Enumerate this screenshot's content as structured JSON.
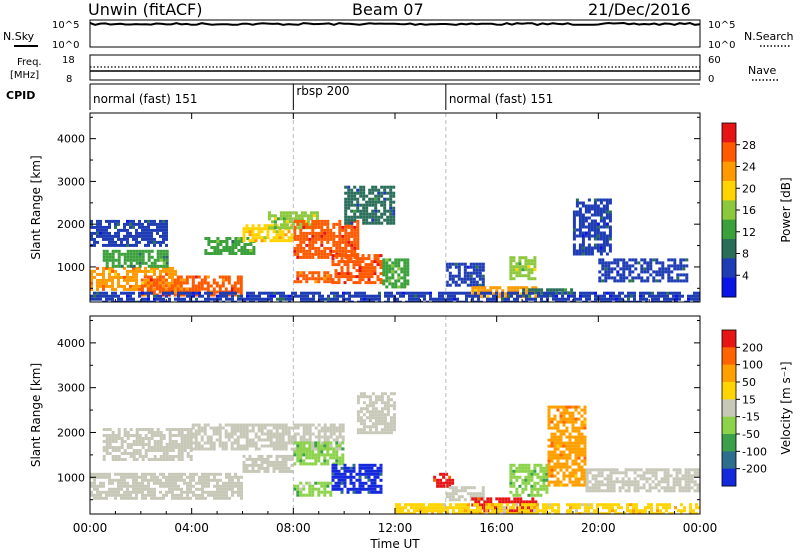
{
  "header": {
    "station": "Unwin (fitACF)",
    "beam": "Beam 07",
    "date": "21/Dec/2016"
  },
  "panel_labels": {
    "nsky": "N.Sky",
    "nsky_top": "10^5",
    "nsky_bottom": "10^0",
    "nsearch": "N.Search",
    "nsearch_top": "10^5",
    "nsearch_bottom": "10^0",
    "freq_line1": "Freq.",
    "freq_line2": "[MHz]",
    "freq_top": "18",
    "freq_bottom": "8",
    "nave": "Nave",
    "nave_top": "60",
    "nave_bottom": "0",
    "cpid": "CPID"
  },
  "cpid_segments": [
    {
      "label": "normal (fast) 151",
      "start_hour": 0
    },
    {
      "label": "rbsp 200",
      "start_hour": 8
    },
    {
      "label": "normal (fast) 151",
      "start_hour": 14
    }
  ],
  "colors": {
    "power": [
      "#0a14e6",
      "#1e3cb4",
      "#2a6e5a",
      "#3aa03a",
      "#8cc83c",
      "#ffd400",
      "#ff9a00",
      "#ff5a00",
      "#e61414"
    ],
    "velocity": [
      "#1428dc",
      "#2c6e8c",
      "#3aa04a",
      "#8cd24a",
      "#c8c8b8",
      "#ffd400",
      "#ffa000",
      "#ff6400",
      "#e61414"
    ],
    "ground_scatter": "#c8c8b8"
  },
  "chart_data": [
    {
      "type": "heatmap",
      "name": "power",
      "xlabel": "",
      "ylabel": "Slant Range [km]",
      "xlim": [
        0,
        24
      ],
      "ylim": [
        180,
        4600
      ],
      "x_ticks": [
        "00:00",
        "04:00",
        "08:00",
        "12:00",
        "16:00",
        "20:00",
        "00:00"
      ],
      "y_ticks": [
        1000,
        2000,
        3000,
        4000
      ],
      "colorbar_label": "Power [dB]",
      "colorbar_ticks": [
        "4",
        "8",
        "12",
        "16",
        "20",
        "24",
        "28"
      ],
      "colorbar_range": [
        0,
        32
      ],
      "regions": [
        {
          "t0": 0.0,
          "t1": 3.5,
          "r0": 500,
          "r1": 1000,
          "value": 24
        },
        {
          "t0": 0.5,
          "t1": 3.0,
          "r0": 1000,
          "r1": 1400,
          "value": 12
        },
        {
          "t0": 0.0,
          "t1": 3.0,
          "r0": 1500,
          "r1": 2100,
          "value": 6
        },
        {
          "t0": 2.0,
          "t1": 6.0,
          "r0": 350,
          "r1": 800,
          "value": 26
        },
        {
          "t0": 4.5,
          "t1": 6.5,
          "r0": 1300,
          "r1": 1700,
          "value": 12
        },
        {
          "t0": 6.0,
          "t1": 8.0,
          "r0": 1600,
          "r1": 2000,
          "value": 20
        },
        {
          "t0": 7.0,
          "t1": 9.0,
          "r0": 1900,
          "r1": 2300,
          "value": 16
        },
        {
          "t0": 8.0,
          "t1": 10.5,
          "r0": 1200,
          "r1": 2100,
          "value": 28
        },
        {
          "t0": 8.0,
          "t1": 9.5,
          "r0": 650,
          "r1": 900,
          "value": 26
        },
        {
          "t0": 9.5,
          "t1": 11.5,
          "r0": 650,
          "r1": 1300,
          "value": 28
        },
        {
          "t0": 10.0,
          "t1": 12.0,
          "r0": 2000,
          "r1": 2900,
          "value": 8
        },
        {
          "t0": 11.5,
          "t1": 12.5,
          "r0": 500,
          "r1": 1200,
          "value": 14
        },
        {
          "t0": 14.0,
          "t1": 15.5,
          "r0": 600,
          "r1": 1100,
          "value": 6
        },
        {
          "t0": 15.0,
          "t1": 17.5,
          "r0": 280,
          "r1": 550,
          "value": 22
        },
        {
          "t0": 17.0,
          "t1": 19.0,
          "r0": 300,
          "r1": 500,
          "value": 10
        },
        {
          "t0": 16.5,
          "t1": 17.5,
          "r0": 750,
          "r1": 1250,
          "value": 16
        },
        {
          "t0": 19.0,
          "t1": 20.5,
          "r0": 1300,
          "r1": 2600,
          "value": 6
        },
        {
          "t0": 20.0,
          "t1": 23.5,
          "r0": 700,
          "r1": 1200,
          "value": 6
        },
        {
          "t0": 0.0,
          "t1": 24.0,
          "r0": 200,
          "r1": 420,
          "value": 5
        }
      ]
    },
    {
      "type": "heatmap",
      "name": "velocity",
      "xlabel": "Time UT",
      "ylabel": "Slant Range [km]",
      "xlim": [
        0,
        24
      ],
      "ylim": [
        180,
        4600
      ],
      "x_ticks": [
        "00:00",
        "04:00",
        "08:00",
        "12:00",
        "16:00",
        "20:00",
        "00:00"
      ],
      "y_ticks": [
        1000,
        2000,
        3000,
        4000
      ],
      "colorbar_label": "Velocity [m s⁻¹]",
      "colorbar_ticks": [
        "200",
        "100",
        "50",
        "15",
        "-15",
        "-50",
        "-100",
        "-200"
      ],
      "colorbar_range": [
        -250,
        250
      ],
      "regions": [
        {
          "t0": 0.0,
          "t1": 6.0,
          "r0": 500,
          "r1": 1100,
          "value": 0,
          "ground_scatter": true
        },
        {
          "t0": 0.5,
          "t1": 4.0,
          "r0": 1400,
          "r1": 2100,
          "value": 0,
          "ground_scatter": true
        },
        {
          "t0": 4.0,
          "t1": 10.0,
          "r0": 1600,
          "r1": 2200,
          "value": 0,
          "ground_scatter": true
        },
        {
          "t0": 6.0,
          "t1": 8.0,
          "r0": 1100,
          "r1": 1500,
          "value": 0,
          "ground_scatter": true
        },
        {
          "t0": 8.0,
          "t1": 10.0,
          "r0": 1300,
          "r1": 1800,
          "value": -80
        },
        {
          "t0": 8.0,
          "t1": 9.5,
          "r0": 600,
          "r1": 900,
          "value": -60
        },
        {
          "t0": 9.5,
          "t1": 11.5,
          "r0": 650,
          "r1": 1300,
          "value": -220
        },
        {
          "t0": 10.5,
          "t1": 12.0,
          "r0": 2000,
          "r1": 2900,
          "value": 0,
          "ground_scatter": true
        },
        {
          "t0": 13.5,
          "t1": 14.3,
          "r0": 800,
          "r1": 1100,
          "value": 220
        },
        {
          "t0": 14.0,
          "t1": 15.5,
          "r0": 500,
          "r1": 800,
          "value": 0,
          "ground_scatter": true
        },
        {
          "t0": 15.0,
          "t1": 17.5,
          "r0": 280,
          "r1": 550,
          "value": 220
        },
        {
          "t0": 16.5,
          "t1": 18.0,
          "r0": 600,
          "r1": 1300,
          "value": -80
        },
        {
          "t0": 18.0,
          "t1": 19.5,
          "r0": 800,
          "r1": 2600,
          "value": 120
        },
        {
          "t0": 19.5,
          "t1": 24.0,
          "r0": 700,
          "r1": 1200,
          "value": 0,
          "ground_scatter": true
        },
        {
          "t0": 12.0,
          "t1": 24.0,
          "r0": 200,
          "r1": 420,
          "value": 60
        }
      ]
    }
  ]
}
